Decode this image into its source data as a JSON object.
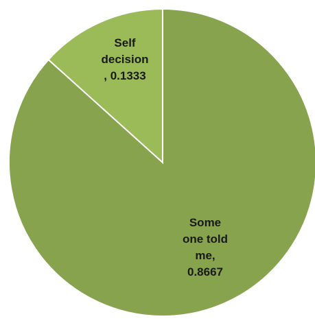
{
  "chart_data": {
    "type": "pie",
    "title": "",
    "slices": [
      {
        "name": "Self decision",
        "value": 0.1333,
        "value_text": "0.1333",
        "color": "#9bbb59",
        "label_lines": [
          "Self",
          "decision",
          ", 0.1333"
        ]
      },
      {
        "name": "Some one told me",
        "value": 0.8667,
        "value_text": "0.8667",
        "color": "#87a34d",
        "label_lines": [
          "Some",
          "one told",
          "me,",
          "0.8667"
        ]
      }
    ],
    "start_angle": "top",
    "direction": "clockwise",
    "stroke_color": "#ffffff"
  }
}
